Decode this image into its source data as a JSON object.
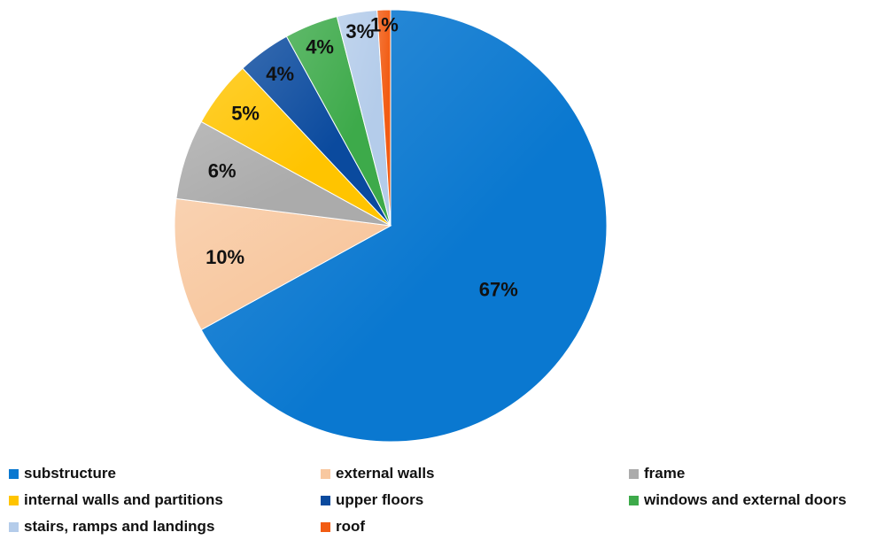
{
  "chart_data": {
    "type": "pie",
    "title": "",
    "start_angle_deg": 0,
    "direction": "clockwise",
    "legend_position": "bottom",
    "slices": [
      {
        "label": "substructure",
        "value": 67,
        "display": "67%",
        "color": "#0A78D0"
      },
      {
        "label": "external walls",
        "value": 10,
        "display": "10%",
        "color": "#F8C8A0"
      },
      {
        "label": "frame",
        "value": 6,
        "display": "6%",
        "color": "#ABABAB"
      },
      {
        "label": "internal walls and partitions",
        "value": 5,
        "display": "5%",
        "color": "#FFC400"
      },
      {
        "label": "upper floors",
        "value": 4,
        "display": "4%",
        "color": "#0A4A9E"
      },
      {
        "label": "windows and external doors",
        "value": 4,
        "display": "4%",
        "color": "#3DAA4A"
      },
      {
        "label": "stairs, ramps and landings",
        "value": 3,
        "display": "3%",
        "color": "#B4CCEA"
      },
      {
        "label": "roof",
        "value": 1,
        "display": "1%",
        "color": "#F25C13"
      }
    ]
  }
}
